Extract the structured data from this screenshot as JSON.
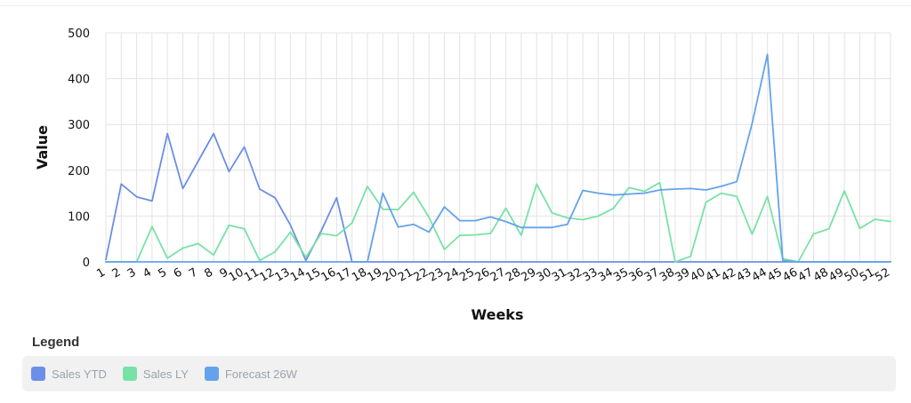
{
  "chart_data": {
    "type": "line",
    "xlabel": "Weeks",
    "ylabel": "Value",
    "ylim": [
      0,
      500
    ],
    "yticks": [
      0,
      100,
      200,
      300,
      400,
      500
    ],
    "grid": true,
    "categories": [
      "1",
      "2",
      "3",
      "4",
      "5",
      "6",
      "7",
      "8",
      "9",
      "10",
      "11",
      "12",
      "13",
      "14",
      "15",
      "16",
      "17",
      "18",
      "19",
      "20",
      "21",
      "22",
      "23",
      "24",
      "25",
      "26",
      "27",
      "28",
      "29",
      "30",
      "31",
      "32",
      "33",
      "34",
      "35",
      "36",
      "37",
      "38",
      "39",
      "40",
      "41",
      "42",
      "43",
      "44",
      "45",
      "46",
      "47",
      "48",
      "49",
      "50",
      "51",
      "52"
    ],
    "series": [
      {
        "name": "Sales YTD",
        "color": "#6b8fe6",
        "values": [
          5,
          170,
          142,
          133,
          280,
          160,
          220,
          280,
          197,
          251,
          159,
          140,
          80,
          3,
          68,
          140,
          0,
          0,
          0,
          0,
          0,
          0,
          0,
          0,
          0,
          0,
          0,
          0,
          0,
          0,
          0,
          0,
          0,
          0,
          0,
          0,
          0,
          0,
          0,
          0,
          0,
          0,
          0,
          0,
          0,
          0,
          0,
          0,
          0,
          0,
          0,
          0
        ]
      },
      {
        "name": "Sales LY",
        "color": "#78e2a6",
        "values": [
          0,
          0,
          0,
          77,
          8,
          30,
          40,
          15,
          80,
          72,
          3,
          22,
          65,
          10,
          62,
          57,
          85,
          165,
          115,
          114,
          152,
          97,
          27,
          58,
          59,
          62,
          117,
          58,
          170,
          107,
          96,
          92,
          100,
          117,
          162,
          154,
          173,
          0,
          12,
          130,
          150,
          143,
          60,
          143,
          7,
          0,
          61,
          72,
          155,
          73,
          93,
          88
        ]
      },
      {
        "name": "Forecast 26W",
        "color": "#64a2ec",
        "values": [
          0,
          0,
          0,
          0,
          0,
          0,
          0,
          0,
          0,
          0,
          0,
          0,
          0,
          0,
          0,
          0,
          0,
          0,
          150,
          76,
          82,
          65,
          120,
          90,
          90,
          98,
          88,
          75,
          75,
          75,
          82,
          156,
          150,
          146,
          148,
          150,
          157,
          159,
          160,
          157,
          165,
          175,
          302,
          453,
          3,
          0,
          0,
          0,
          0,
          0,
          0,
          0
        ]
      }
    ]
  },
  "legend": {
    "title": "Legend",
    "items": [
      {
        "label": "Sales YTD",
        "color": "#6b8fe6"
      },
      {
        "label": "Sales LY",
        "color": "#78e2a6"
      },
      {
        "label": "Forecast 26W",
        "color": "#64a2ec"
      }
    ]
  }
}
